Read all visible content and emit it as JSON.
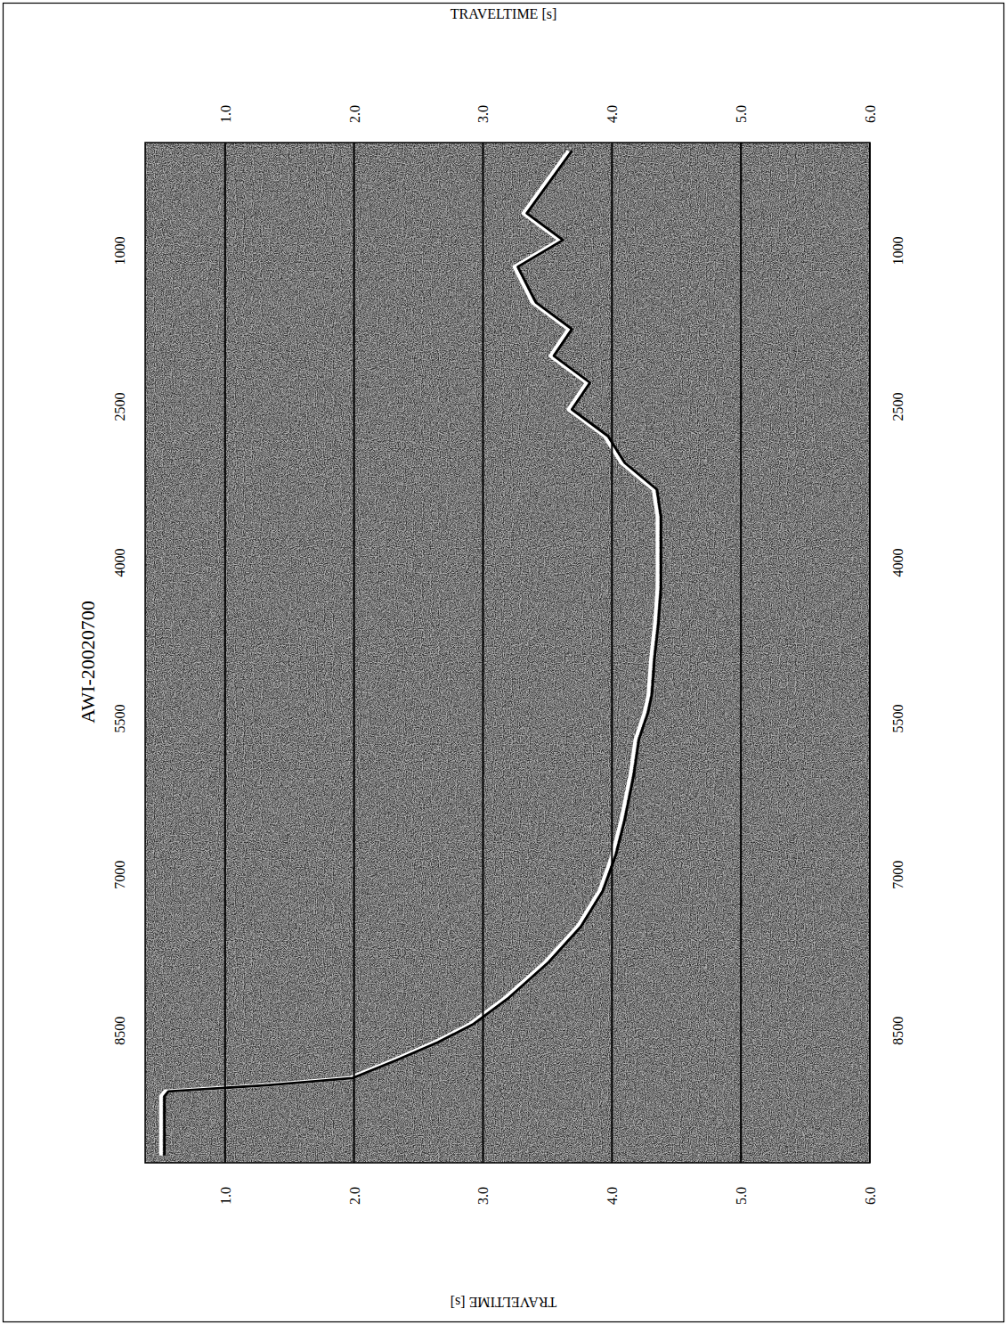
{
  "chart_data": {
    "type": "line",
    "title": "AWI-20020700",
    "y_label": "TRAVELTIME [s]",
    "orientation": "horizontal",
    "grid": true,
    "color": "#000000",
    "xlim": [
      -40,
      9770
    ],
    "xticks": [
      1000,
      2500,
      4000,
      5500,
      7000,
      8500
    ],
    "ylim": [
      0.38,
      6.0
    ],
    "yticks": [
      {
        "value": 1.0,
        "label": "1.0"
      },
      {
        "value": 2.0,
        "label": "2.0"
      },
      {
        "value": 3.0,
        "label": "3.0"
      },
      {
        "value": 4.0,
        "label": "4.0"
      },
      {
        "value": 5.0,
        "label": "5.0"
      },
      {
        "value": 6.0,
        "label": "6.0"
      }
    ],
    "x": [
      40,
      640,
      897,
      1154,
      1497,
      1754,
      2011,
      2269,
      2526,
      2783,
      3040,
      3297,
      3554,
      3897,
      4240,
      4583,
      4926,
      5269,
      5440,
      5697,
      6040,
      6469,
      6811,
      7154,
      7497,
      7840,
      8183,
      8440,
      8611,
      8783,
      8954,
      9023,
      9083,
      9130,
      9400,
      9700
    ],
    "values": [
      3.69,
      3.34,
      3.62,
      3.27,
      3.41,
      3.69,
      3.55,
      3.83,
      3.69,
      3.97,
      4.1,
      4.35,
      4.38,
      4.38,
      4.38,
      4.36,
      4.33,
      4.31,
      4.28,
      4.21,
      4.17,
      4.1,
      4.03,
      3.93,
      3.76,
      3.51,
      3.2,
      2.92,
      2.65,
      2.33,
      1.99,
      1.33,
      0.56,
      0.53,
      0.53,
      0.53
    ]
  }
}
